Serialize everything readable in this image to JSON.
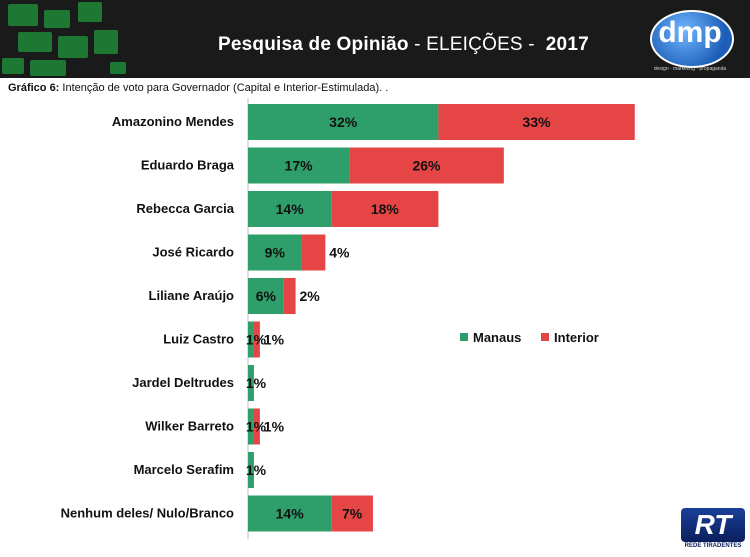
{
  "header": {
    "title_main": "Pesquisa de Opinião",
    "title_sub": " - ELEIÇÕES - ",
    "title_year": "2017",
    "logo_text": "dmp",
    "logo_tagline": "design · marketing · propaganda"
  },
  "caption": {
    "label": "Gráfico 6:",
    "text": " Intenção de voto para Governador (Capital e Interior-Estimulada). ."
  },
  "watermark": {
    "mark": "RT",
    "text": "REDE TIRADENTES"
  },
  "colors": {
    "manaus": "#2e9e6a",
    "interior": "#e64545"
  },
  "chart_data": {
    "type": "bar",
    "orientation": "horizontal",
    "stacked": true,
    "title": "",
    "xlabel": "",
    "ylabel": "",
    "categories": [
      "Amazonino Mendes",
      "Eduardo Braga",
      "Rebecca Garcia",
      "José Ricardo",
      "Liliane Araújo",
      "Luiz Castro",
      "Jardel Deltrudes",
      "Wilker Barreto",
      "Marcelo Serafim",
      "Nenhum deles/ Nulo/Branco"
    ],
    "series": [
      {
        "name": "Manaus",
        "values": [
          32,
          17,
          14,
          9,
          6,
          1,
          1,
          1,
          1,
          14
        ],
        "labels": [
          "32%",
          "17%",
          "14%",
          "9%",
          "6%",
          "1%",
          "1%",
          "1%",
          "1%",
          "14%"
        ]
      },
      {
        "name": "Interior",
        "values": [
          33,
          26,
          18,
          4,
          2,
          1,
          0,
          1,
          0,
          7
        ],
        "labels": [
          "33%",
          "26%",
          "18%",
          "4%",
          "2%",
          "1%",
          "",
          "1%",
          "",
          "7%"
        ]
      }
    ],
    "xlim": [
      0,
      65
    ],
    "grid": false,
    "legend": "right"
  }
}
